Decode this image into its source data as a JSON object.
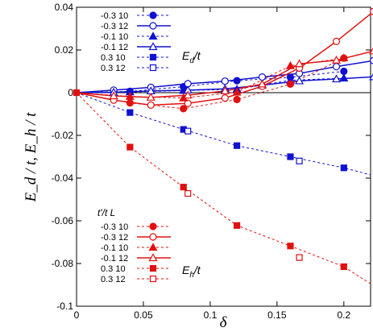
{
  "chart_data": {
    "type": "line",
    "xlabel": "δ",
    "ylabel": "E_d / t, E_h / t",
    "xlim": [
      0,
      0.22
    ],
    "ylim": [
      -0.1,
      0.04
    ],
    "x_ticks": [
      "0",
      "0.05",
      "0.1",
      "0.15",
      "0.2"
    ],
    "x_tick_values": [
      0,
      0.05,
      0.1,
      0.15,
      0.2
    ],
    "y_ticks": [
      "0.04",
      "0.02",
      "0",
      "-0.02",
      "-0.04",
      "-0.06",
      "-0.08",
      "-0.1"
    ],
    "y_tick_values": [
      0.04,
      0.02,
      0,
      -0.02,
      -0.04,
      -0.06,
      -0.08,
      -0.1
    ],
    "grid": false,
    "colors": {
      "blue": "#1010d0",
      "red": "#e01010",
      "axis": "#000000"
    },
    "legend_groups": [
      {
        "name": "upper",
        "position": "top-left",
        "label": "E_d/t",
        "label_main": "E",
        "label_sub": "d",
        "label_tail": "/t",
        "entries": [
          {
            "series": 0,
            "label": "-0.3  10"
          },
          {
            "series": 1,
            "label": "-0.3  12"
          },
          {
            "series": 2,
            "label": "-0.1  10"
          },
          {
            "series": 3,
            "label": "-0.1  12"
          },
          {
            "series": 4,
            "label": "0.3  10"
          },
          {
            "series": 5,
            "label": "0.3  12"
          }
        ]
      },
      {
        "name": "lower",
        "position": "bottom-left",
        "header": "t'/t  L",
        "label": "E_h/t",
        "label_main": "E",
        "label_sub": "h",
        "label_tail": "/t",
        "entries": [
          {
            "series": 6,
            "label": "-0.3  10"
          },
          {
            "series": 7,
            "label": "-0.3  12"
          },
          {
            "series": 8,
            "label": "-0.1  10"
          },
          {
            "series": 9,
            "label": "-0.1  12"
          },
          {
            "series": 10,
            "label": "0.3  10"
          },
          {
            "series": 11,
            "label": "0.3  12"
          }
        ]
      }
    ],
    "series": [
      {
        "name": "-0.3 10",
        "quantity": "E_d/t",
        "color": "#1010d0",
        "marker": "circle",
        "filled": true,
        "line": "dashed",
        "x": [
          0,
          0.04,
          0.08,
          0.12,
          0.16,
          0.2
        ],
        "y": [
          0,
          0.0006,
          0.0028,
          0.0056,
          0.0072,
          0.01
        ]
      },
      {
        "name": "-0.3 12",
        "quantity": "E_d/t",
        "color": "#1010d0",
        "marker": "circle",
        "filled": false,
        "line": "solid",
        "x": [
          0,
          0.0278,
          0.0556,
          0.0833,
          0.1111,
          0.1389,
          0.1667,
          0.1944,
          0.2222
        ],
        "y": [
          0,
          0.0012,
          0.0025,
          0.0042,
          0.0054,
          0.0073,
          0.009,
          0.0122,
          0.015
        ]
      },
      {
        "name": "-0.1 10",
        "quantity": "E_d/t",
        "color": "#1010d0",
        "marker": "triangle",
        "filled": true,
        "line": "dashed",
        "x": [
          0,
          0.04,
          0.08,
          0.12,
          0.16,
          0.2
        ],
        "y": [
          0,
          0.0003,
          0.001,
          0.0016,
          0.0058,
          0.0068
        ]
      },
      {
        "name": "-0.1 12",
        "quantity": "E_d/t",
        "color": "#1010d0",
        "marker": "triangle",
        "filled": false,
        "line": "solid",
        "x": [
          0,
          0.0278,
          0.0556,
          0.0833,
          0.1111,
          0.1389,
          0.1667,
          0.1944,
          0.2222
        ],
        "y": [
          0,
          0.0002,
          0.0008,
          0.0012,
          0.0018,
          0.0035,
          0.0055,
          0.0064,
          0.0074
        ]
      },
      {
        "name": "0.3 10",
        "quantity": "E_d/t",
        "color": "#1010d0",
        "marker": "square",
        "filled": true,
        "line": "dashed",
        "x": [
          0,
          0.04,
          0.08,
          0.12,
          0.16,
          0.2
        ],
        "y": [
          0,
          -0.0093,
          -0.0172,
          -0.0248,
          -0.03,
          -0.0352
        ]
      },
      {
        "name": "0.3 12",
        "quantity": "E_d/t",
        "color": "#1010d0",
        "marker": "square",
        "filled": false,
        "line": "dashed",
        "x": [
          0,
          0.0833,
          0.1667
        ],
        "y": [
          0,
          -0.018,
          -0.032
        ]
      },
      {
        "name": "-0.3 10",
        "quantity": "E_h/t",
        "color": "#e01010",
        "marker": "circle",
        "filled": true,
        "line": "dashed",
        "x": [
          0,
          0.04,
          0.08,
          0.12,
          0.16,
          0.2
        ],
        "y": [
          0,
          -0.0048,
          -0.0075,
          -0.0032,
          0.004,
          0.0162
        ]
      },
      {
        "name": "-0.3 12",
        "quantity": "E_h/t",
        "color": "#e01010",
        "marker": "circle",
        "filled": false,
        "line": "solid",
        "x": [
          0,
          0.0278,
          0.0556,
          0.0833,
          0.1111,
          0.1389,
          0.1667,
          0.1944,
          0.2222
        ],
        "y": [
          0,
          -0.0035,
          -0.0058,
          -0.005,
          -0.0025,
          0.003,
          0.0115,
          0.024,
          0.038
        ]
      },
      {
        "name": "-0.1 10",
        "quantity": "E_h/t",
        "color": "#e01010",
        "marker": "triangle",
        "filled": true,
        "line": "dashed",
        "x": [
          0,
          0.04,
          0.08,
          0.12,
          0.16,
          0.2
        ],
        "y": [
          0,
          -0.0018,
          -0.0025,
          0.0002,
          0.0126,
          0.0162
        ]
      },
      {
        "name": "-0.1 12",
        "quantity": "E_h/t",
        "color": "#e01010",
        "marker": "triangle",
        "filled": false,
        "line": "solid",
        "x": [
          0,
          0.0278,
          0.0556,
          0.0833,
          0.1111,
          0.1389,
          0.1667,
          0.1944,
          0.2222
        ],
        "y": [
          0,
          -0.0015,
          -0.0022,
          -0.0012,
          0.0008,
          0.004,
          0.0135,
          0.0152,
          0.0195
        ]
      },
      {
        "name": "0.3 10",
        "quantity": "E_h/t",
        "color": "#e01010",
        "marker": "square",
        "filled": true,
        "line": "dashed",
        "x": [
          0,
          0.04,
          0.08,
          0.12,
          0.16,
          0.2
        ],
        "y": [
          0,
          -0.0255,
          -0.0442,
          -0.0622,
          -0.0718,
          -0.0815
        ]
      },
      {
        "name": "0.3 12",
        "quantity": "E_h/t",
        "color": "#e01010",
        "marker": "square",
        "filled": false,
        "line": "dashed",
        "x": [
          0,
          0.0833,
          0.1667
        ],
        "y": [
          0,
          -0.0472,
          -0.0772
        ]
      }
    ],
    "fit_curves": [
      {
        "color": "#1010d0",
        "line": "dashed",
        "x": [
          0,
          0.04,
          0.08,
          0.12,
          0.16,
          0.2,
          0.22
        ],
        "y": [
          0,
          -0.0093,
          -0.0172,
          -0.0248,
          -0.03,
          -0.0352,
          -0.0385
        ]
      },
      {
        "color": "#e01010",
        "line": "dashed",
        "x": [
          0,
          0.04,
          0.08,
          0.12,
          0.16,
          0.2,
          0.22
        ],
        "y": [
          0,
          -0.0255,
          -0.0442,
          -0.0622,
          -0.0718,
          -0.0815,
          -0.0895
        ]
      }
    ]
  }
}
